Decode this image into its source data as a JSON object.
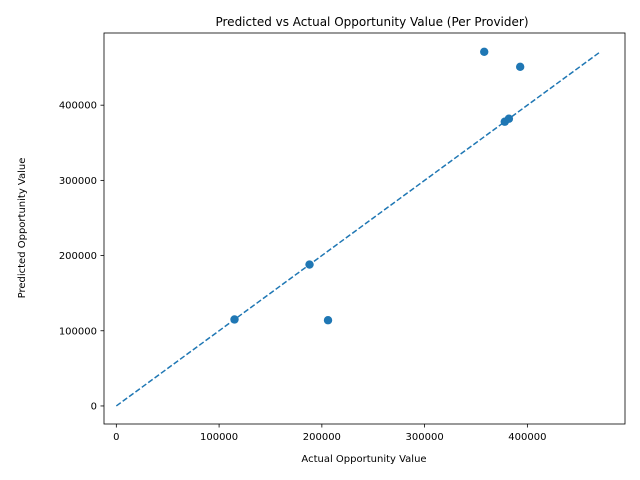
{
  "chart_data": {
    "type": "scatter",
    "title": "Predicted vs Actual Opportunity Value (Per Provider)",
    "xlabel": "Actual Opportunity Value",
    "ylabel": "Predicted Opportunity Value",
    "xlim": [
      -12000,
      495000
    ],
    "ylim": [
      -24000,
      496000
    ],
    "xticks": [
      0,
      100000,
      200000,
      300000,
      400000
    ],
    "xtick_labels": [
      "0",
      "100000",
      "200000",
      "300000",
      "400000"
    ],
    "yticks": [
      0,
      100000,
      200000,
      300000,
      400000
    ],
    "ytick_labels": [
      "0",
      "100000",
      "200000",
      "300000",
      "400000"
    ],
    "grid": false,
    "point_color": "#1f77b4",
    "reference_line": {
      "style": "dashed",
      "color": "#1f77b4",
      "x": [
        0,
        471000
      ],
      "y": [
        0,
        471000
      ]
    },
    "series": [
      {
        "x": [
          358000,
          393000,
          378000,
          382000,
          188000,
          115000,
          206000
        ],
        "y": [
          471000,
          451000,
          378000,
          382000,
          188000,
          115000,
          114000
        ]
      }
    ]
  }
}
